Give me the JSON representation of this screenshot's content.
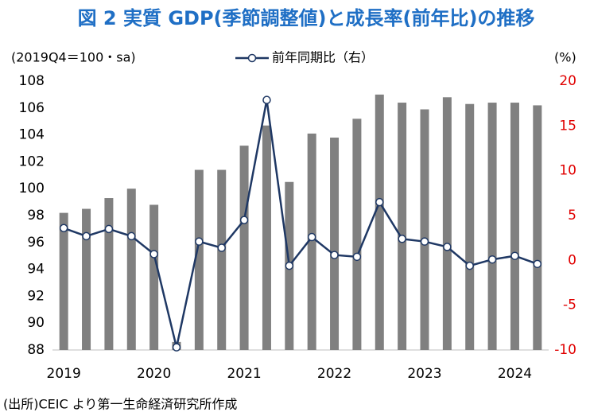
{
  "chart_data": {
    "type": "combo",
    "title": "図 2 実質 GDP(季節調整値)と成長率(前年比)の推移",
    "ylabel": "(2019Q4＝100・sa)",
    "y2label": "(%)",
    "source": "(出所)CEIC より第一生命経済研究所作成",
    "categories": [
      "2019",
      null,
      null,
      null,
      "2020",
      null,
      null,
      null,
      "2021",
      null,
      null,
      null,
      "2022",
      null,
      null,
      null,
      "2023",
      null,
      null,
      null,
      "2024",
      null
    ],
    "series": [
      {
        "type": "bar",
        "axis": "y",
        "color": "#808080",
        "values": [
          98.2,
          98.5,
          99.3,
          100.0,
          98.8,
          88.6,
          101.4,
          101.4,
          103.2,
          104.7,
          100.5,
          104.1,
          103.8,
          105.2,
          107.0,
          106.4,
          105.9,
          106.8,
          106.3,
          106.4,
          106.4,
          106.2
        ]
      },
      {
        "type": "line",
        "axis": "y2",
        "name": "前年同期比（右）",
        "color": "#1f3864",
        "values": [
          3.6,
          2.7,
          3.5,
          2.7,
          0.7,
          -9.7,
          2.1,
          1.4,
          4.5,
          17.9,
          -0.6,
          2.6,
          0.6,
          0.4,
          6.5,
          2.4,
          2.1,
          1.5,
          -0.6,
          0.1,
          0.5,
          -0.4
        ]
      }
    ],
    "ylim": [
      88,
      108
    ],
    "yticks": [
      88,
      90,
      92,
      94,
      96,
      98,
      100,
      102,
      104,
      106,
      108
    ],
    "y2lim": [
      -10,
      20
    ],
    "y2ticks": [
      -10,
      -5,
      0,
      5,
      10,
      15,
      20
    ],
    "y2tick_color": "#e00000",
    "grid": false
  }
}
